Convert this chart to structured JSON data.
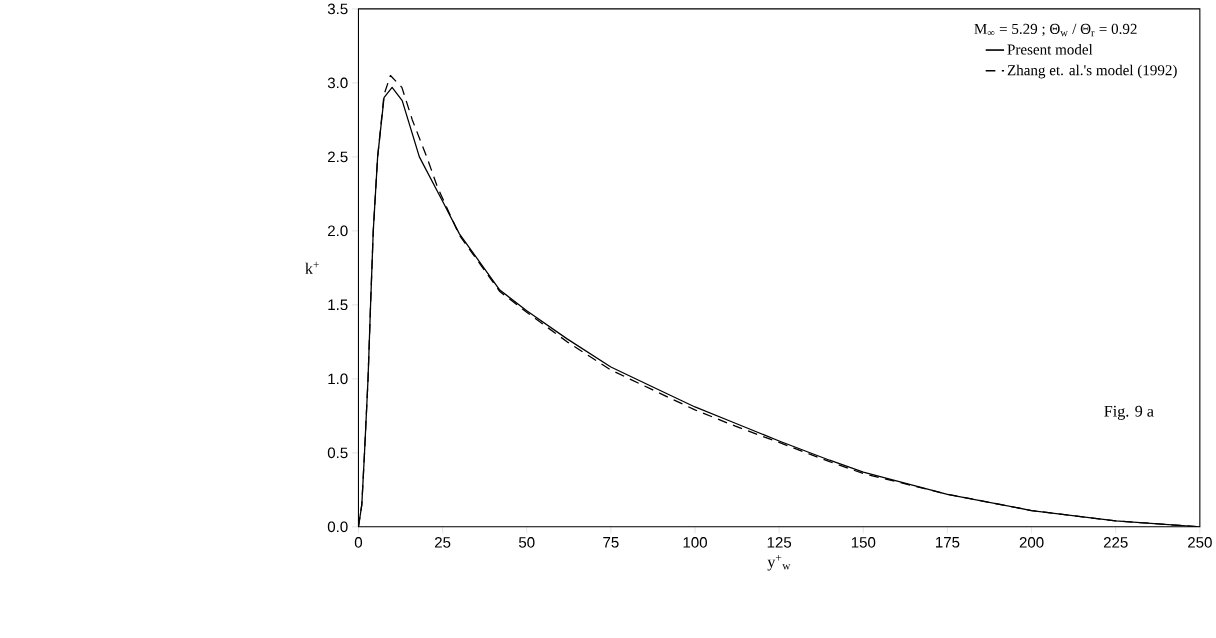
{
  "chart_data": {
    "type": "line",
    "xlabel": "y$^{+}$$_{w}$",
    "ylabel": "k$^{+}$",
    "legend_title": "M$_{∞}$ = 5.29 ; Θ$_{w}$ / Θ$_{r}$ = 0.92",
    "annotations": [
      "Fig. 9 a"
    ],
    "series": [
      {
        "name": "Present model",
        "color": "#000000",
        "line_style": "solid",
        "x": [
          0,
          1,
          1.8,
          2.85,
          3.6,
          4.4,
          5.7,
          7.6,
          10,
          13,
          18.1,
          25,
          30,
          42,
          50,
          62,
          75,
          87,
          100,
          112,
          125,
          140,
          150,
          175,
          200,
          225,
          250
        ],
        "values": [
          0,
          0.15,
          0.5,
          1.0,
          1.5,
          2.0,
          2.5,
          2.9,
          2.97,
          2.88,
          2.5,
          2.2,
          1.98,
          1.6,
          1.46,
          1.27,
          1.08,
          0.95,
          0.81,
          0.7,
          0.58,
          0.45,
          0.37,
          0.22,
          0.11,
          0.04,
          0
        ]
      },
      {
        "name": "Zhang et. al.'s model (1992)",
        "color": "#000000",
        "line_style": "dashed",
        "x": [
          0,
          1,
          1.8,
          2.85,
          3.6,
          4.4,
          5.7,
          7.6,
          9.5,
          12.9,
          16,
          20.3,
          23.4,
          30,
          42,
          50,
          62,
          75,
          87,
          100,
          112,
          125,
          140,
          150,
          175,
          200,
          225,
          250
        ],
        "values": [
          0,
          0.15,
          0.5,
          1.0,
          1.5,
          2.0,
          2.5,
          2.92,
          3.05,
          2.97,
          2.75,
          2.5,
          2.3,
          1.97,
          1.59,
          1.45,
          1.25,
          1.06,
          0.93,
          0.79,
          0.68,
          0.57,
          0.44,
          0.36,
          0.22,
          0.11,
          0.04,
          0
        ]
      }
    ],
    "xlim": [
      0,
      250
    ],
    "ylim": [
      0,
      3.5
    ],
    "xticks": [
      0,
      25,
      50,
      75,
      100,
      125,
      150,
      175,
      200,
      225,
      250
    ],
    "yticks": [
      {
        "value": 0,
        "label": "0.0"
      },
      {
        "value": 0.5,
        "label": "0.5"
      },
      {
        "value": 1,
        "label": "1.0"
      },
      {
        "value": 1.5,
        "label": "1.5"
      },
      {
        "value": 2,
        "label": "2.0"
      },
      {
        "value": 2.5,
        "label": "2.5"
      },
      {
        "value": 3,
        "label": "3.0"
      },
      {
        "value": 3.5,
        "label": "3.5"
      }
    ],
    "grid": false,
    "legend": "top right"
  }
}
